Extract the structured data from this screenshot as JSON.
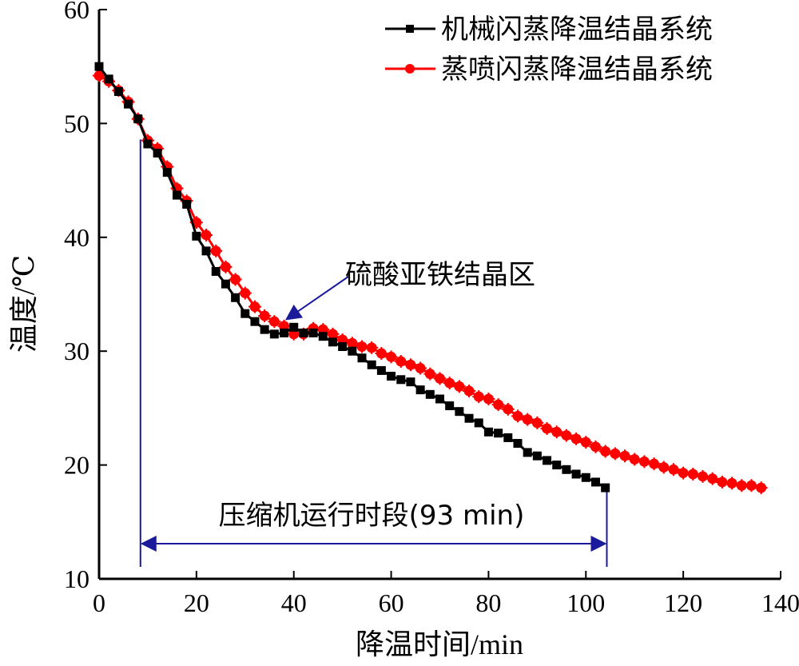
{
  "chart_data": {
    "type": "line",
    "xlabel": "降温时间/min",
    "ylabel": "温度/℃",
    "xlim": [
      0,
      140
    ],
    "ylim": [
      10,
      60
    ],
    "xticks": [
      0,
      20,
      40,
      60,
      80,
      100,
      120,
      140
    ],
    "yticks": [
      10,
      20,
      30,
      40,
      50,
      60
    ],
    "grid": false,
    "legend": "top-right",
    "series": [
      {
        "name": "机械闪蒸降温结晶系统",
        "color": "#000000",
        "marker": "square",
        "x": [
          0,
          2,
          4,
          6,
          8,
          10,
          12,
          14,
          16,
          18,
          20,
          22,
          24,
          26,
          28,
          30,
          32,
          34,
          36,
          38,
          40,
          42,
          44,
          46,
          48,
          50,
          52,
          54,
          56,
          58,
          60,
          62,
          64,
          66,
          68,
          70,
          72,
          74,
          76,
          78,
          80,
          82,
          84,
          86,
          88,
          90,
          92,
          94,
          96,
          98,
          100,
          102,
          104
        ],
        "values": [
          55.0,
          53.9,
          52.8,
          51.7,
          50.4,
          48.2,
          47.4,
          45.7,
          43.7,
          42.9,
          40.1,
          38.8,
          37.0,
          35.9,
          34.7,
          33.3,
          32.6,
          31.9,
          31.5,
          31.6,
          32.1,
          31.6,
          31.6,
          31.3,
          30.8,
          30.4,
          30.0,
          29.4,
          28.8,
          28.3,
          27.8,
          27.5,
          27.3,
          26.6,
          26.2,
          25.8,
          25.2,
          24.7,
          24.1,
          23.7,
          22.9,
          22.8,
          22.4,
          21.9,
          21.1,
          20.8,
          20.4,
          20.0,
          19.6,
          19.2,
          18.9,
          18.5,
          18.0
        ]
      },
      {
        "name": "蒸喷闪蒸降温结晶系统",
        "color": "#ff0000",
        "marker": "star",
        "x": [
          0,
          2,
          4,
          6,
          8,
          10,
          12,
          14,
          16,
          18,
          20,
          22,
          24,
          26,
          28,
          30,
          32,
          34,
          36,
          38,
          40,
          42,
          44,
          46,
          48,
          50,
          52,
          54,
          56,
          58,
          60,
          62,
          64,
          66,
          68,
          70,
          72,
          74,
          76,
          78,
          80,
          82,
          84,
          86,
          88,
          90,
          92,
          94,
          96,
          98,
          100,
          102,
          104,
          106,
          108,
          110,
          112,
          114,
          116,
          118,
          120,
          122,
          124,
          126,
          128,
          130,
          132,
          134,
          136
        ],
        "values": [
          54.2,
          53.7,
          52.9,
          51.9,
          50.4,
          48.5,
          47.8,
          46.2,
          44.3,
          43.2,
          41.3,
          40.2,
          38.8,
          37.4,
          36.3,
          35.1,
          33.9,
          33.1,
          32.6,
          32.2,
          31.5,
          31.5,
          32.0,
          31.9,
          31.5,
          31.0,
          30.7,
          30.4,
          30.3,
          29.8,
          29.5,
          29.1,
          28.8,
          28.5,
          28.0,
          27.6,
          27.2,
          26.9,
          26.5,
          26.0,
          25.8,
          25.3,
          24.9,
          24.3,
          24.0,
          23.7,
          23.2,
          22.9,
          22.6,
          22.3,
          22.0,
          21.6,
          21.2,
          21.0,
          20.8,
          20.5,
          20.3,
          20.1,
          19.8,
          19.6,
          19.3,
          19.2,
          19.0,
          18.8,
          18.5,
          18.4,
          18.2,
          18.2,
          18.0
        ]
      }
    ],
    "annotations": {
      "crystal_zone_label": "硫酸亚铁结晶区",
      "compressor_label": "压缩机运行时段(93 min)",
      "compressor_range": [
        8.5,
        104.3
      ],
      "crystal_arrow_target": [
        38.5,
        32.8
      ],
      "marker_color": "#1a1a9a"
    }
  }
}
